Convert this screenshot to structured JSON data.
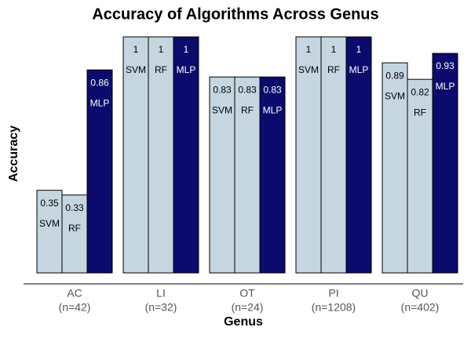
{
  "chart_data": {
    "type": "bar",
    "title": "Accuracy of Algorithms Across Genus",
    "x_label": "Genus",
    "y_label": "Accuracy",
    "categories": [
      "AC",
      "LI",
      "OT",
      "PI",
      "QU"
    ],
    "sample_sizes": [
      "(n=42)",
      "(n=32)",
      "(n=24)",
      "(n=1208)",
      "(n=402)"
    ],
    "series": [
      {
        "name": "SVM",
        "color": "#c5d6e1",
        "values": [
          0.35,
          1,
          0.83,
          1,
          0.89
        ]
      },
      {
        "name": "RF",
        "color": "#c5d6e1",
        "values": [
          0.33,
          1,
          0.83,
          1,
          0.82
        ]
      },
      {
        "name": "MLP",
        "color": "#0b0b6e",
        "values": [
          0.86,
          1,
          0.83,
          1,
          0.93
        ]
      }
    ],
    "ylim": [
      0,
      1
    ]
  }
}
